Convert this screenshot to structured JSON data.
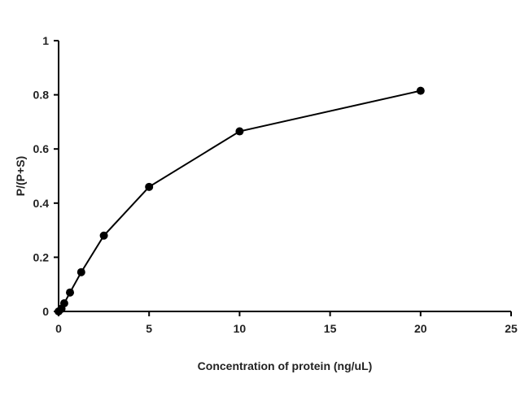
{
  "chart_data": {
    "type": "line",
    "title": "",
    "xlabel": "Concentration of protein (ng/uL)",
    "ylabel": "P/(P+S)",
    "xlim": [
      0,
      25
    ],
    "ylim": [
      0,
      1
    ],
    "xticks": [
      0,
      5,
      10,
      15,
      20,
      25
    ],
    "yticks": [
      0,
      0.2,
      0.4,
      0.6,
      0.8,
      1
    ],
    "xtick_labels": [
      "0",
      "5",
      "10",
      "15",
      "20",
      "25"
    ],
    "ytick_labels": [
      "0",
      "0.2",
      "0.4",
      "0.6",
      "0.8",
      "1"
    ],
    "grid": false,
    "legend": "none",
    "series": [
      {
        "color": "#000000",
        "x": [
          0,
          0.16,
          0.31,
          0.63,
          1.25,
          2.5,
          5,
          10,
          20
        ],
        "y": [
          0,
          0.01,
          0.03,
          0.07,
          0.145,
          0.28,
          0.46,
          0.665,
          0.815
        ]
      }
    ]
  }
}
